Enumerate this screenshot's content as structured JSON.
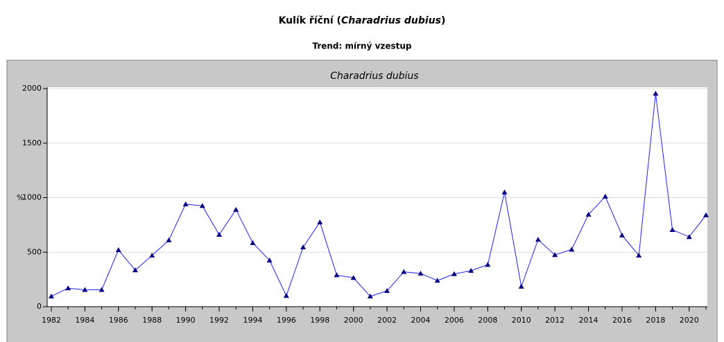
{
  "chart_data": {
    "type": "line",
    "title": [
      "Kulík říční (",
      "Charadrius dubius",
      ")"
    ],
    "subtitle": "Trend: mírný vzestup",
    "panel_title": "Charadrius dubius",
    "y_label": "%",
    "x": [
      1982,
      1983,
      1984,
      1985,
      1986,
      1987,
      1988,
      1989,
      1990,
      1991,
      1992,
      1993,
      1994,
      1995,
      1996,
      1997,
      1998,
      1999,
      2000,
      2001,
      2002,
      2003,
      2004,
      2005,
      2006,
      2007,
      2008,
      2009,
      2010,
      2011,
      2012,
      2013,
      2014,
      2015,
      2016,
      2017,
      2018,
      2019,
      2020,
      2021
    ],
    "series": [
      {
        "name": "Charadrius dubius",
        "color": "#1e1eff",
        "marker_color": "#000080",
        "values": [
          95,
          170,
          155,
          155,
          520,
          335,
          470,
          610,
          940,
          925,
          660,
          890,
          585,
          425,
          100,
          545,
          775,
          290,
          265,
          95,
          145,
          320,
          305,
          240,
          300,
          330,
          385,
          1050,
          185,
          615,
          475,
          525,
          845,
          1010,
          655,
          470,
          1955,
          705,
          640,
          840
        ]
      }
    ],
    "xlim": [
      1982,
      2021
    ],
    "xticks": [
      1982,
      1984,
      1986,
      1988,
      1990,
      1992,
      1994,
      1996,
      1998,
      2000,
      2002,
      2004,
      2006,
      2008,
      2010,
      2012,
      2014,
      2016,
      2018,
      2020
    ],
    "ylim": [
      0,
      2000
    ],
    "yticks": [
      0,
      500,
      1000,
      1500,
      2000
    ],
    "grid": true
  }
}
